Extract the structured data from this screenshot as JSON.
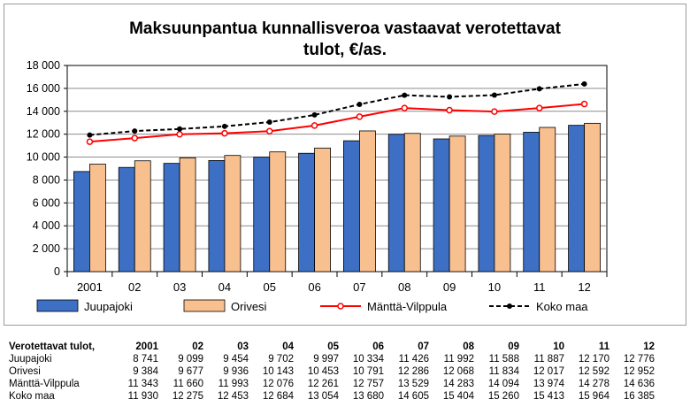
{
  "chart_data": {
    "type": "bar",
    "title": "Maksuunpantua kunnallisveroa vastaavat verotettavat tulot, €/as.",
    "title_lines": [
      "Maksuunpantua kunnallisveroa vastaavat verotettavat",
      "tulot, €/as."
    ],
    "categories": [
      "2001",
      "02",
      "03",
      "04",
      "05",
      "06",
      "07",
      "08",
      "09",
      "10",
      "11",
      "12"
    ],
    "ylim": [
      0,
      18000
    ],
    "yticks": [
      "0",
      "2 000",
      "4 000",
      "6 000",
      "8 000",
      "10 000",
      "12 000",
      "14 000",
      "16 000",
      "18 000"
    ],
    "grid": true,
    "legend_position": "bottom",
    "series": [
      {
        "name": "Juupajoki",
        "type": "bar",
        "color": "#3d6fc4",
        "values": [
          8741,
          9099,
          9454,
          9702,
          9997,
          10334,
          11426,
          11992,
          11588,
          11887,
          12170,
          12776
        ]
      },
      {
        "name": "Orivesi",
        "type": "bar",
        "color": "#f9c08f",
        "values": [
          9384,
          9677,
          9936,
          10143,
          10453,
          10791,
          12286,
          12068,
          11834,
          12017,
          12592,
          12952
        ]
      },
      {
        "name": "Mänttä-Vilppula",
        "type": "line",
        "color": "#ff0000",
        "values": [
          11343,
          11660,
          11993,
          12076,
          12261,
          12757,
          13529,
          14283,
          14094,
          13974,
          14278,
          14636
        ]
      },
      {
        "name": "Koko maa",
        "type": "line",
        "color": "#000000",
        "values": [
          11930,
          12275,
          12453,
          12684,
          13054,
          13680,
          14605,
          15404,
          15260,
          15413,
          15964,
          16385
        ]
      }
    ]
  },
  "table": {
    "header_label": "Verotettavat tulot,",
    "columns": [
      "2001",
      "02",
      "03",
      "04",
      "05",
      "06",
      "07",
      "08",
      "09",
      "10",
      "11",
      "12"
    ],
    "rows": [
      {
        "label": "Juupajoki",
        "values": [
          "8 741",
          "9 099",
          "9 454",
          "9 702",
          "9 997",
          "10 334",
          "11 426",
          "11 992",
          "11 588",
          "11 887",
          "12 170",
          "12 776"
        ]
      },
      {
        "label": "Orivesi",
        "values": [
          "9 384",
          "9 677",
          "9 936",
          "10 143",
          "10 453",
          "10 791",
          "12 286",
          "12 068",
          "11 834",
          "12 017",
          "12 592",
          "12 952"
        ]
      },
      {
        "label": "Mänttä-Vilppula",
        "values": [
          "11 343",
          "11 660",
          "11 993",
          "12 076",
          "12 261",
          "12 757",
          "13 529",
          "14 283",
          "14 094",
          "13 974",
          "14 278",
          "14 636"
        ]
      },
      {
        "label": "Koko maa",
        "values": [
          "11 930",
          "12 275",
          "12 453",
          "12 684",
          "13 054",
          "13 680",
          "14 605",
          "15 404",
          "15 260",
          "15 413",
          "15 964",
          "16 385"
        ]
      }
    ]
  }
}
